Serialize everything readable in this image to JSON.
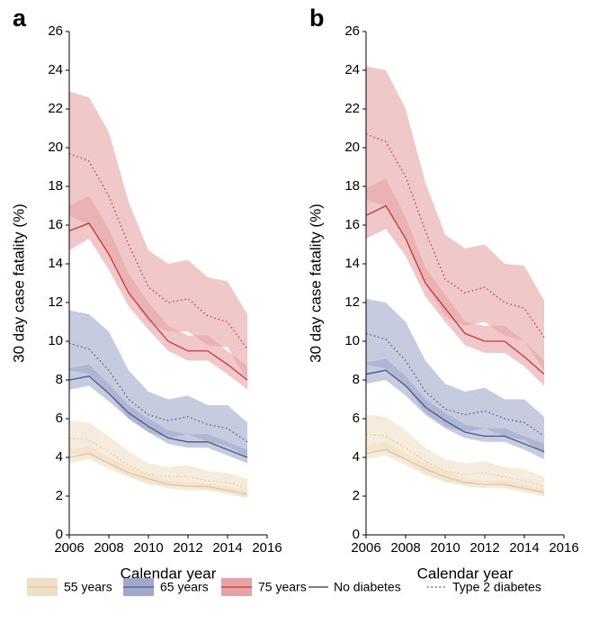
{
  "chart_data": [
    {
      "type": "line",
      "title": "a",
      "x_label": "Calendar year",
      "y_label": "30 day case fatality (%)",
      "x": [
        2006,
        2007,
        2008,
        2009,
        2010,
        2011,
        2012,
        2013,
        2014,
        2015
      ],
      "xlim": [
        2006,
        2016
      ],
      "xticks": [
        2006,
        2008,
        2010,
        2012,
        2014,
        2016
      ],
      "ylim": [
        0,
        26
      ],
      "yticks": [
        0,
        2,
        4,
        6,
        8,
        10,
        12,
        14,
        16,
        18,
        20,
        22,
        24,
        26
      ],
      "series": [
        {
          "color": "#e2c49c",
          "band_color": "#f0dfc7",
          "dash": "dotted",
          "values": [
            5.0,
            4.9,
            4.3,
            3.6,
            3.1,
            3.0,
            3.0,
            2.8,
            2.7,
            2.4
          ],
          "lower": [
            4.2,
            4.1,
            3.6,
            3.0,
            2.6,
            2.5,
            2.5,
            2.3,
            2.2,
            1.9
          ],
          "upper": [
            5.9,
            5.8,
            5.1,
            4.3,
            3.7,
            3.5,
            3.6,
            3.3,
            3.2,
            2.9
          ]
        },
        {
          "color": "#e2c49c",
          "band_color": "#f0dfc7",
          "dash": "solid",
          "values": [
            4.0,
            4.2,
            3.7,
            3.2,
            2.9,
            2.6,
            2.5,
            2.5,
            2.3,
            2.1
          ],
          "lower": [
            3.7,
            3.9,
            3.4,
            3.0,
            2.7,
            2.4,
            2.3,
            2.3,
            2.1,
            1.9
          ],
          "upper": [
            4.4,
            4.6,
            4.0,
            3.5,
            3.1,
            2.8,
            2.7,
            2.7,
            2.5,
            2.3
          ]
        },
        {
          "color": "#4a5788",
          "band_color": "#a0a9c9",
          "dash": "dotted",
          "values": [
            9.9,
            9.6,
            8.5,
            7.0,
            6.2,
            5.9,
            6.1,
            5.7,
            5.5,
            4.8
          ],
          "lower": [
            8.5,
            8.3,
            7.3,
            6.0,
            5.3,
            5.0,
            5.2,
            4.8,
            4.6,
            4.0
          ],
          "upper": [
            11.6,
            11.4,
            10.5,
            8.5,
            7.4,
            7.0,
            7.2,
            6.7,
            6.7,
            5.8
          ]
        },
        {
          "color": "#4a5788",
          "band_color": "#a0a9c9",
          "dash": "solid",
          "values": [
            8.0,
            8.2,
            7.3,
            6.3,
            5.6,
            5.0,
            4.8,
            4.8,
            4.4,
            4.0
          ],
          "lower": [
            7.5,
            7.7,
            6.9,
            6.0,
            5.3,
            4.7,
            4.5,
            4.5,
            4.1,
            3.7
          ],
          "upper": [
            8.6,
            8.8,
            7.8,
            6.7,
            6.0,
            5.4,
            5.2,
            5.2,
            4.8,
            4.4
          ]
        },
        {
          "color": "#c8363f",
          "band_color": "#e6a3a5",
          "dash": "dotted",
          "values": [
            19.7,
            19.3,
            17.5,
            15.0,
            12.8,
            12.0,
            12.2,
            11.3,
            11.0,
            9.6
          ],
          "lower": [
            16.5,
            16.0,
            14.5,
            12.5,
            11.0,
            10.5,
            10.5,
            9.8,
            9.7,
            8.0
          ],
          "upper": [
            22.9,
            22.6,
            20.8,
            17.2,
            14.7,
            14.0,
            14.2,
            13.3,
            13.1,
            11.4
          ]
        },
        {
          "color": "#c8363f",
          "band_color": "#e6a3a5",
          "dash": "solid",
          "values": [
            15.7,
            16.1,
            14.5,
            12.5,
            11.2,
            10.0,
            9.5,
            9.5,
            8.8,
            8.0
          ],
          "lower": [
            14.7,
            15.3,
            13.7,
            11.8,
            10.6,
            9.5,
            9.0,
            9.0,
            8.3,
            7.5
          ],
          "upper": [
            17.0,
            17.5,
            15.8,
            13.5,
            12.0,
            10.8,
            10.3,
            10.3,
            9.5,
            8.7
          ]
        }
      ]
    },
    {
      "type": "line",
      "title": "b",
      "x_label": "Calendar year",
      "y_label": "30 day case fatality (%)",
      "x": [
        2006,
        2007,
        2008,
        2009,
        2010,
        2011,
        2012,
        2013,
        2014,
        2015
      ],
      "xlim": [
        2006,
        2016
      ],
      "xticks": [
        2006,
        2008,
        2010,
        2012,
        2014,
        2016
      ],
      "ylim": [
        0,
        26
      ],
      "yticks": [
        0,
        2,
        4,
        6,
        8,
        10,
        12,
        14,
        16,
        18,
        20,
        22,
        24,
        26
      ],
      "series": [
        {
          "color": "#e2c49c",
          "band_color": "#f0dfc7",
          "dash": "dotted",
          "values": [
            5.2,
            5.1,
            4.5,
            3.8,
            3.3,
            3.1,
            3.2,
            3.0,
            2.8,
            2.5
          ],
          "lower": [
            4.4,
            4.3,
            3.8,
            3.1,
            2.7,
            2.6,
            2.7,
            2.5,
            2.3,
            2.0
          ],
          "upper": [
            6.2,
            6.1,
            5.4,
            4.5,
            3.9,
            3.7,
            3.8,
            3.5,
            3.4,
            3.0
          ]
        },
        {
          "color": "#e2c49c",
          "band_color": "#f0dfc7",
          "dash": "solid",
          "values": [
            4.2,
            4.4,
            3.9,
            3.4,
            3.0,
            2.7,
            2.6,
            2.6,
            2.4,
            2.2
          ],
          "lower": [
            3.9,
            4.1,
            3.6,
            3.1,
            2.8,
            2.5,
            2.4,
            2.4,
            2.2,
            2.0
          ],
          "upper": [
            4.6,
            4.8,
            4.2,
            3.7,
            3.3,
            2.9,
            2.8,
            2.8,
            2.6,
            2.4
          ]
        },
        {
          "color": "#4a5788",
          "band_color": "#a0a9c9",
          "dash": "dotted",
          "values": [
            10.4,
            10.1,
            9.0,
            7.4,
            6.5,
            6.2,
            6.4,
            6.0,
            5.8,
            5.1
          ],
          "lower": [
            8.8,
            8.6,
            7.7,
            6.3,
            5.6,
            5.3,
            5.5,
            5.1,
            4.9,
            4.2
          ],
          "upper": [
            12.2,
            12.0,
            11.0,
            9.0,
            7.8,
            7.4,
            7.6,
            7.0,
            7.0,
            6.1
          ]
        },
        {
          "color": "#4a5788",
          "band_color": "#a0a9c9",
          "dash": "solid",
          "values": [
            8.3,
            8.5,
            7.7,
            6.6,
            5.9,
            5.3,
            5.1,
            5.1,
            4.7,
            4.3
          ],
          "lower": [
            7.8,
            8.0,
            7.2,
            6.2,
            5.5,
            5.0,
            4.8,
            4.8,
            4.4,
            3.9
          ],
          "upper": [
            8.9,
            9.1,
            8.2,
            7.0,
            6.3,
            5.7,
            5.5,
            5.5,
            5.1,
            4.7
          ]
        },
        {
          "color": "#c8363f",
          "band_color": "#e6a3a5",
          "dash": "dotted",
          "values": [
            20.7,
            20.3,
            18.5,
            15.7,
            13.2,
            12.5,
            12.8,
            12.0,
            11.7,
            10.2
          ],
          "lower": [
            17.3,
            17.0,
            15.3,
            13.0,
            11.3,
            10.8,
            11.0,
            10.3,
            10.0,
            8.5
          ],
          "upper": [
            24.2,
            24.0,
            22.0,
            18.2,
            15.5,
            14.8,
            15.0,
            14.0,
            13.9,
            12.1
          ]
        },
        {
          "color": "#c8363f",
          "band_color": "#e6a3a5",
          "dash": "solid",
          "values": [
            16.5,
            17.0,
            15.3,
            13.0,
            11.7,
            10.4,
            10.0,
            10.0,
            9.2,
            8.3
          ],
          "lower": [
            15.3,
            15.8,
            14.4,
            12.3,
            11.0,
            9.8,
            9.4,
            9.4,
            8.7,
            7.7
          ],
          "upper": [
            17.9,
            18.4,
            16.4,
            13.8,
            12.4,
            11.0,
            10.8,
            10.8,
            10.0,
            9.0
          ]
        }
      ]
    }
  ],
  "legend": [
    {
      "label": "55 years",
      "color": "#e2c49c",
      "band_color": "#f0dfc7"
    },
    {
      "label": "65 years",
      "color": "#4a5788",
      "band_color": "#a0a9c9"
    },
    {
      "label": "75 years",
      "color": "#c8363f",
      "band_color": "#e6a3a5"
    },
    {
      "label": "No diabetes",
      "color": "#333333",
      "dash": "solid"
    },
    {
      "label": "Type 2 diabetes",
      "color": "#333333",
      "dash": "dotted"
    }
  ]
}
